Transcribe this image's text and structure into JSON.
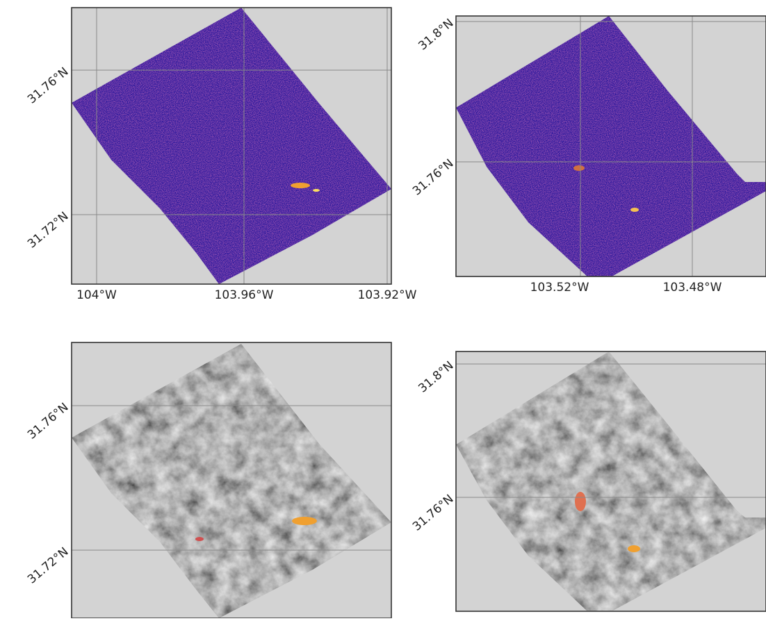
{
  "panels": [
    {
      "lat_labels": [
        "31.76°N",
        "31.72°N"
      ],
      "lon_labels": [
        "104°W",
        "103.96°W",
        "103.92°W"
      ]
    },
    {
      "lat_labels": [
        "31.8°N",
        "31.76°N"
      ],
      "lon_labels": [
        "103.52°W",
        "103.48°W"
      ]
    },
    {
      "lat_labels": [
        "31.76°N",
        "31.72°N"
      ]
    },
    {
      "lat_labels": [
        "31.8°N",
        "31.76°N"
      ]
    }
  ]
}
